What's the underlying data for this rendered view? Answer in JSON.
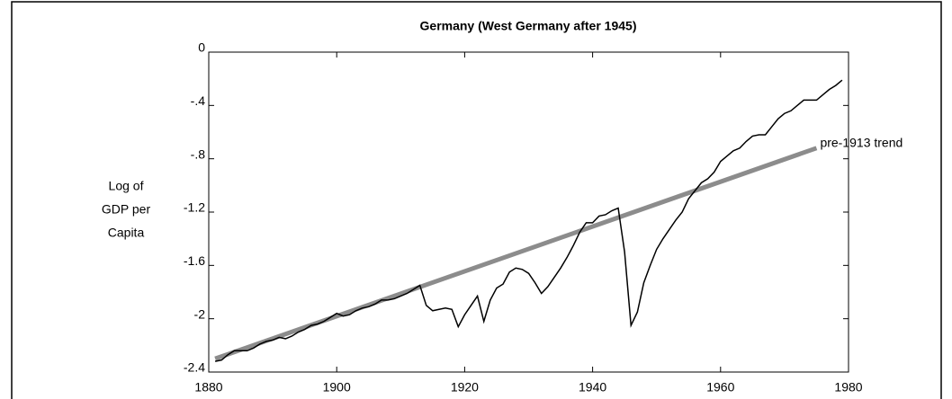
{
  "chart_data": {
    "type": "line",
    "title": "Germany (West Germany after 1945)",
    "y_label": [
      "Log of",
      "GDP per",
      "Capita"
    ],
    "xlim": [
      1880,
      1980
    ],
    "xticks": [
      1880,
      1900,
      1920,
      1940,
      1960,
      1980
    ],
    "ylim": [
      -2.4,
      0
    ],
    "yticks": [
      {
        "value": -2.4,
        "label": "-2.4"
      },
      -2,
      {
        "value": -1.6,
        "label": "-1.6"
      },
      -1.2,
      {
        "value": -0.8,
        "label": "-.8"
      },
      {
        "value": -0.4,
        "label": "-.4"
      },
      0
    ],
    "series": [
      {
        "color": "#000000",
        "x": [
          1881,
          1882,
          1883,
          1884,
          1885,
          1886,
          1887,
          1888,
          1889,
          1890,
          1891,
          1892,
          1893,
          1894,
          1895,
          1896,
          1897,
          1898,
          1899,
          1900,
          1901,
          1902,
          1903,
          1904,
          1905,
          1906,
          1907,
          1908,
          1909,
          1910,
          1911,
          1912,
          1913,
          1914,
          1915,
          1916,
          1917,
          1918,
          1919,
          1920,
          1921,
          1922,
          1923,
          1924,
          1925,
          1926,
          1927,
          1928,
          1929,
          1930,
          1931,
          1932,
          1933,
          1934,
          1935,
          1936,
          1937,
          1938,
          1939,
          1940,
          1941,
          1942,
          1943,
          1944,
          1945,
          1946,
          1947,
          1948,
          1949,
          1950,
          1951,
          1952,
          1953,
          1954,
          1955,
          1956,
          1957,
          1958,
          1959,
          1960,
          1961,
          1962,
          1963,
          1964,
          1965,
          1966,
          1967,
          1968,
          1969,
          1970,
          1971,
          1972,
          1973,
          1974,
          1975,
          1976,
          1977,
          1978,
          1979
        ],
        "values": [
          -2.32,
          -2.31,
          -2.27,
          -2.24,
          -2.24,
          -2.24,
          -2.22,
          -2.19,
          -2.17,
          -2.16,
          -2.14,
          -2.15,
          -2.13,
          -2.1,
          -2.08,
          -2.05,
          -2.04,
          -2.02,
          -1.99,
          -1.96,
          -1.98,
          -1.97,
          -1.94,
          -1.92,
          -1.91,
          -1.89,
          -1.86,
          -1.86,
          -1.85,
          -1.83,
          -1.81,
          -1.78,
          -1.75,
          -1.9,
          -1.94,
          -1.93,
          -1.92,
          -1.93,
          -2.06,
          -1.97,
          -1.9,
          -1.83,
          -2.02,
          -1.86,
          -1.77,
          -1.74,
          -1.65,
          -1.62,
          -1.63,
          -1.66,
          -1.73,
          -1.81,
          -1.76,
          -1.69,
          -1.62,
          -1.54,
          -1.45,
          -1.35,
          -1.28,
          -1.28,
          -1.23,
          -1.22,
          -1.19,
          -1.17,
          -1.5,
          -2.05,
          -1.95,
          -1.73,
          -1.6,
          -1.48,
          -1.4,
          -1.33,
          -1.26,
          -1.2,
          -1.1,
          -1.04,
          -0.98,
          -0.95,
          -0.9,
          -0.82,
          -0.78,
          -0.74,
          -0.72,
          -0.67,
          -0.63,
          -0.62,
          -0.62,
          -0.56,
          -0.5,
          -0.46,
          -0.44,
          -0.4,
          -0.36,
          -0.36,
          -0.36,
          -0.32,
          -0.28,
          -0.25,
          -0.21
        ]
      },
      {
        "name": "pre-1913 trend",
        "color": "#8c8c8c",
        "x": [
          1881,
          1975
        ],
        "values": [
          -2.3,
          -0.72
        ]
      }
    ]
  }
}
